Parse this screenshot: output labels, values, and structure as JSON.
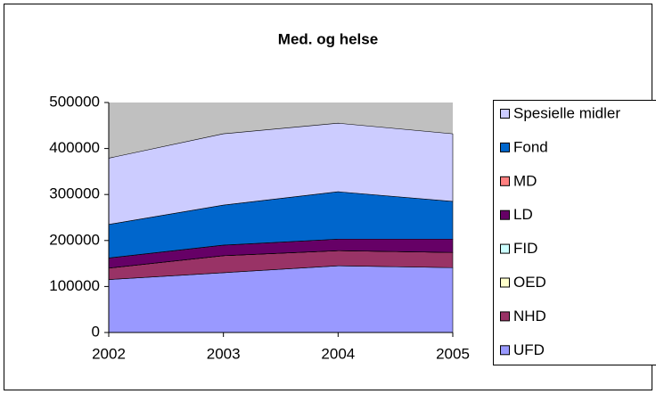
{
  "chart_data": {
    "type": "stacked_area",
    "title": "Med. og helse",
    "categories": [
      "2002",
      "2003",
      "2004",
      "2005"
    ],
    "series": [
      {
        "name": "UFD",
        "color": "#9999ff",
        "values": [
          115000,
          130000,
          145000,
          141000
        ]
      },
      {
        "name": "NHD",
        "color": "#993366",
        "values": [
          25000,
          37000,
          33000,
          33000
        ]
      },
      {
        "name": "OED",
        "color": "#ffffcc",
        "values": [
          0,
          0,
          0,
          0
        ]
      },
      {
        "name": "FID",
        "color": "#ccffff",
        "values": [
          0,
          0,
          0,
          0
        ]
      },
      {
        "name": "LD",
        "color": "#660066",
        "values": [
          22000,
          23000,
          25000,
          29000
        ]
      },
      {
        "name": "MD",
        "color": "#ff8080",
        "values": [
          0,
          0,
          0,
          0
        ]
      },
      {
        "name": "Fond",
        "color": "#0066cc",
        "values": [
          73000,
          87000,
          103000,
          82000
        ]
      },
      {
        "name": "Spesielle midler",
        "color": "#ccccff",
        "values": [
          144000,
          155000,
          149000,
          147000
        ]
      }
    ],
    "ylim": [
      0,
      500000
    ],
    "yticks": [
      0,
      100000,
      200000,
      300000,
      400000,
      500000
    ],
    "plot_background": "#c0c0c0",
    "legend": "right"
  }
}
